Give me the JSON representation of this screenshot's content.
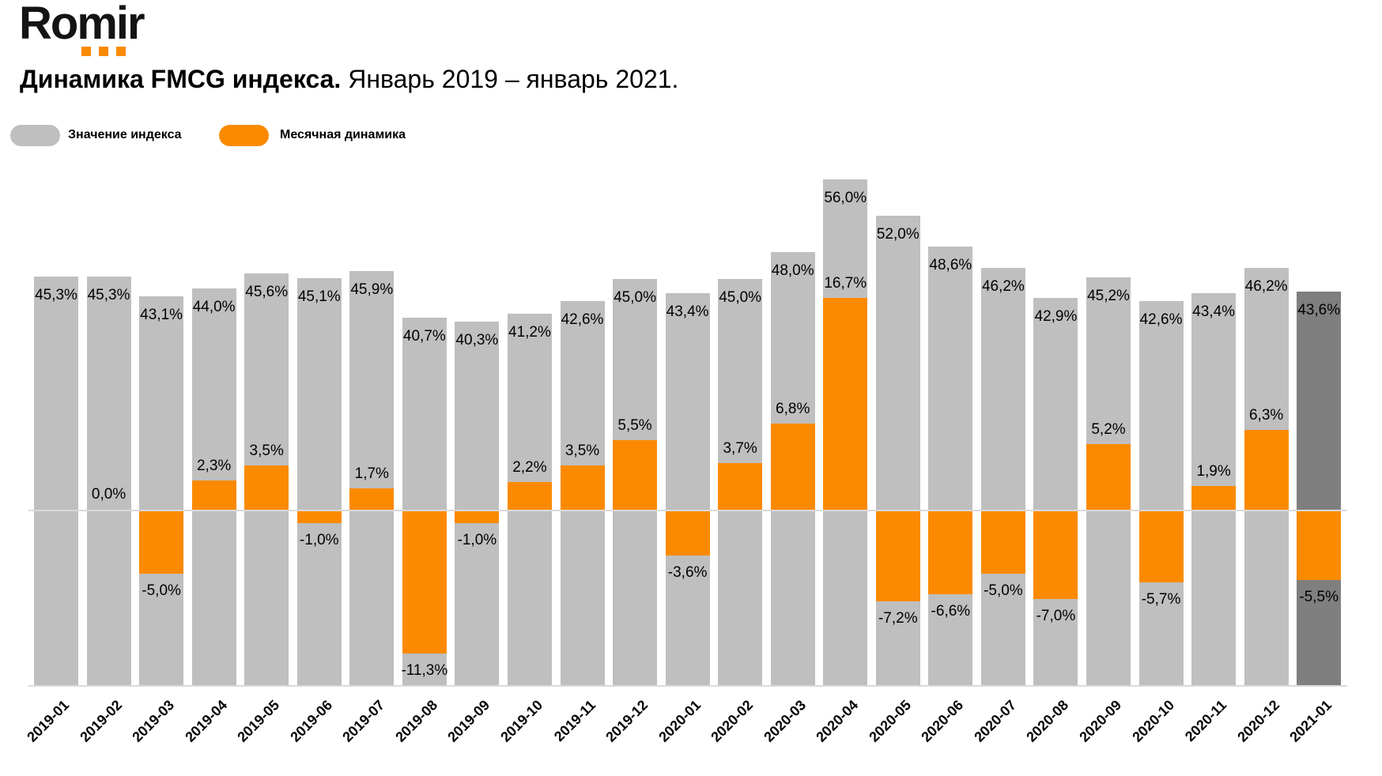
{
  "logo": {
    "text": "Romir",
    "dots": 3
  },
  "title": {
    "bold": "Динамика FMCG индекса.",
    "regular": "Январь 2019 – январь 2021."
  },
  "legend": {
    "items": [
      {
        "label": "Значение индекса",
        "series": "index"
      },
      {
        "label": "Месячная динамика",
        "series": "dynamic"
      }
    ]
  },
  "colors": {
    "index_bar": "#BFBFBF",
    "index_bar_highlight": "#7F7F7F",
    "dynamic_bar": "#FC8A00",
    "axis_line": "#DADADA",
    "label_text": "#000000",
    "logo_text": "#141414",
    "logo_dots": "#FC8A00"
  },
  "chart_data": {
    "type": "bar",
    "title": "Динамика FMCG индекса. Январь 2019 – январь 2021.",
    "categories": [
      "2019-01",
      "2019-02",
      "2019-03",
      "2019-04",
      "2019-05",
      "2019-06",
      "2019-07",
      "2019-08",
      "2019-09",
      "2019-10",
      "2019-11",
      "2019-12",
      "2020-01",
      "2020-02",
      "2020-03",
      "2020-04",
      "2020-05",
      "2020-06",
      "2020-07",
      "2020-08",
      "2020-09",
      "2020-10",
      "2020-11",
      "2020-12",
      "2021-01"
    ],
    "series": [
      {
        "name": "Значение индекса",
        "unit": "%",
        "values": [
          45.3,
          45.3,
          43.1,
          44.0,
          45.6,
          45.1,
          45.9,
          40.7,
          40.3,
          41.2,
          42.6,
          45.0,
          43.4,
          45.0,
          48.0,
          56.0,
          52.0,
          48.6,
          46.2,
          42.9,
          45.2,
          42.6,
          43.4,
          46.2,
          43.6
        ]
      },
      {
        "name": "Месячная динамика",
        "unit": "%",
        "values": [
          null,
          0.0,
          -5.0,
          2.3,
          3.5,
          -1.0,
          1.7,
          -11.3,
          -1.0,
          2.2,
          3.5,
          5.5,
          -3.6,
          3.7,
          6.8,
          16.7,
          -7.2,
          -6.6,
          -5.0,
          -7.0,
          5.2,
          -5.7,
          1.9,
          6.3,
          -5.5
        ]
      }
    ],
    "value_label_format": "comma-decimal, one digit, percent sign",
    "highlight_last_category": "2021-01",
    "legend_position": "top-left",
    "grid": false,
    "value_axis_visible": false,
    "baseline": 0
  }
}
